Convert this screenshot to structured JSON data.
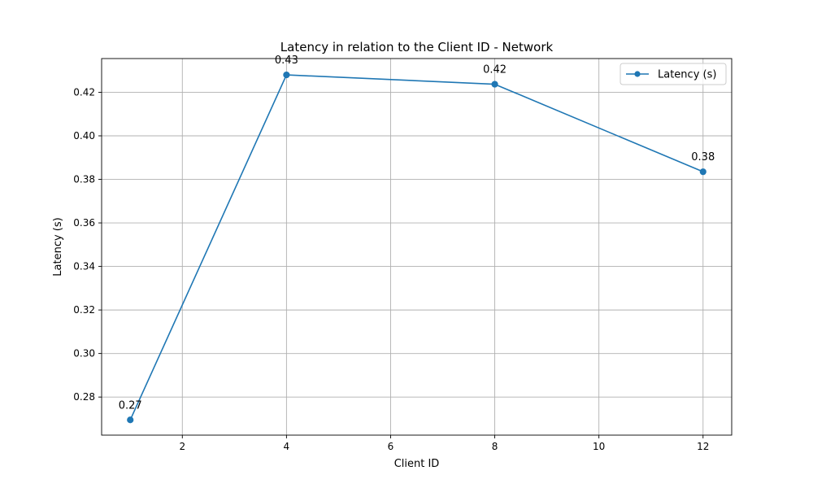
{
  "chart_data": {
    "type": "line",
    "title": "Latency in relation to the Client ID - Network",
    "xlabel": "Client ID",
    "ylabel": "Latency (s)",
    "xlim": [
      0.45,
      12.55
    ],
    "ylim": [
      0.2625,
      0.4355
    ],
    "xticks": [
      2,
      4,
      6,
      8,
      10,
      12
    ],
    "xtick_labels": [
      "2",
      "4",
      "6",
      "8",
      "10",
      "12"
    ],
    "yticks": [
      0.28,
      0.3,
      0.32,
      0.34,
      0.36,
      0.38,
      0.4,
      0.42
    ],
    "ytick_labels": [
      "0.28",
      "0.30",
      "0.32",
      "0.34",
      "0.36",
      "0.38",
      "0.40",
      "0.42"
    ],
    "grid": true,
    "legend_position": "top-right",
    "series": [
      {
        "name": "Latency (s)",
        "color": "#1f77b4",
        "marker": "circle",
        "x": [
          1,
          4,
          8,
          12
        ],
        "y": [
          0.2695,
          0.428,
          0.4237,
          0.3835
        ],
        "labels": [
          "0.27",
          "0.43",
          "0.42",
          "0.38"
        ]
      }
    ]
  }
}
